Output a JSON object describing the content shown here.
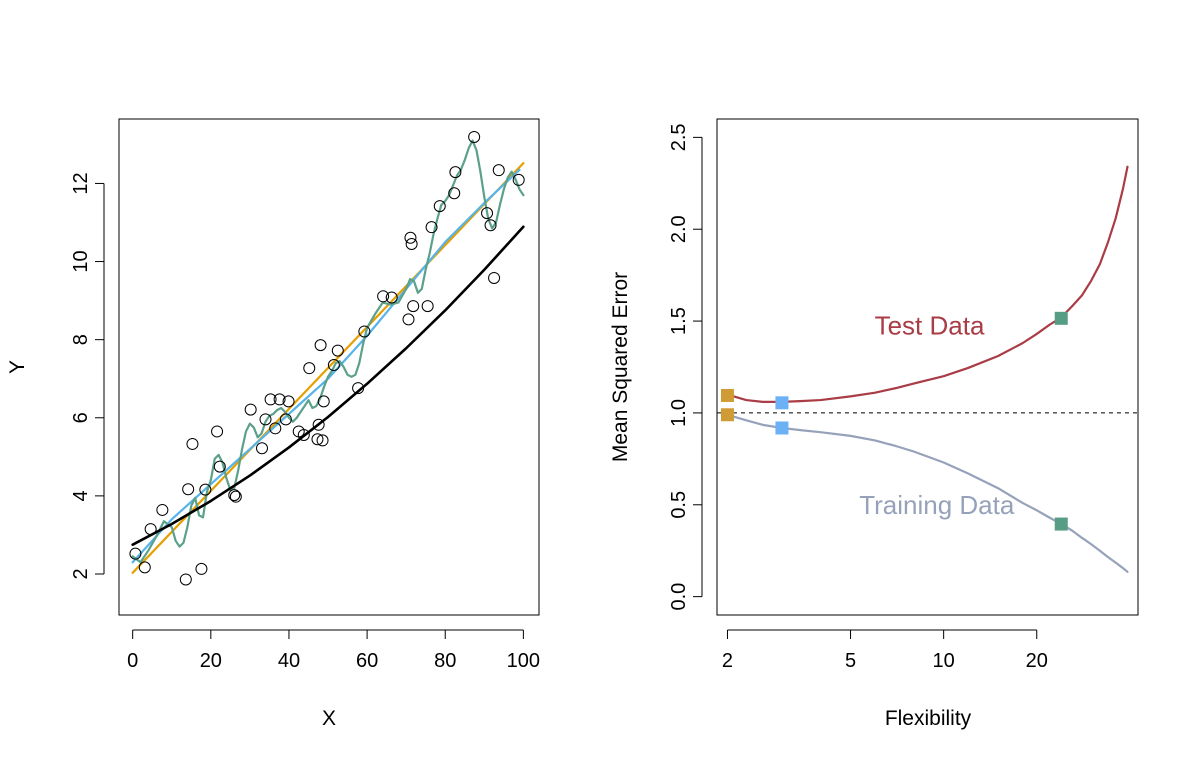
{
  "chart_data": [
    {
      "type": "scatter",
      "title": "",
      "xlabel": "X",
      "ylabel": "Y",
      "xlim": [
        -3.5,
        104
      ],
      "ylim": [
        0.95,
        13.65
      ],
      "xticks": [
        "0",
        "20",
        "40",
        "60",
        "80",
        "100"
      ],
      "xtick_values": [
        0,
        20,
        40,
        60,
        80,
        100
      ],
      "yticks": [
        "2",
        "4",
        "6",
        "8",
        "10",
        "12"
      ],
      "ytick_values": [
        2,
        4,
        6,
        8,
        10,
        12
      ],
      "grid": false,
      "points": [
        {
          "x": 0.7,
          "y": 2.52
        },
        {
          "x": 3.1,
          "y": 2.17
        },
        {
          "x": 4.6,
          "y": 3.15
        },
        {
          "x": 7.6,
          "y": 3.64
        },
        {
          "x": 13.6,
          "y": 1.86
        },
        {
          "x": 14.2,
          "y": 4.17
        },
        {
          "x": 15.3,
          "y": 5.33
        },
        {
          "x": 17.6,
          "y": 2.13
        },
        {
          "x": 18.6,
          "y": 4.16
        },
        {
          "x": 21.6,
          "y": 5.65
        },
        {
          "x": 22.3,
          "y": 4.75
        },
        {
          "x": 26.0,
          "y": 4.02
        },
        {
          "x": 26.4,
          "y": 3.98
        },
        {
          "x": 30.2,
          "y": 6.21
        },
        {
          "x": 33.1,
          "y": 5.22
        },
        {
          "x": 34.0,
          "y": 5.96
        },
        {
          "x": 35.3,
          "y": 6.47
        },
        {
          "x": 36.5,
          "y": 5.73
        },
        {
          "x": 37.6,
          "y": 6.47
        },
        {
          "x": 39.2,
          "y": 5.96
        },
        {
          "x": 39.9,
          "y": 6.42
        },
        {
          "x": 42.5,
          "y": 5.65
        },
        {
          "x": 43.8,
          "y": 5.56
        },
        {
          "x": 45.2,
          "y": 7.27
        },
        {
          "x": 47.3,
          "y": 5.45
        },
        {
          "x": 47.6,
          "y": 5.82
        },
        {
          "x": 48.1,
          "y": 7.86
        },
        {
          "x": 48.6,
          "y": 5.42
        },
        {
          "x": 48.9,
          "y": 6.42
        },
        {
          "x": 51.5,
          "y": 7.35
        },
        {
          "x": 52.5,
          "y": 7.72
        },
        {
          "x": 57.7,
          "y": 6.76
        },
        {
          "x": 59.3,
          "y": 8.21
        },
        {
          "x": 64.1,
          "y": 9.11
        },
        {
          "x": 66.3,
          "y": 9.08
        },
        {
          "x": 70.6,
          "y": 8.52
        },
        {
          "x": 71.1,
          "y": 10.61
        },
        {
          "x": 71.4,
          "y": 10.45
        },
        {
          "x": 71.8,
          "y": 8.86
        },
        {
          "x": 75.5,
          "y": 8.86
        },
        {
          "x": 76.5,
          "y": 10.88
        },
        {
          "x": 78.6,
          "y": 11.42
        },
        {
          "x": 82.3,
          "y": 11.75
        },
        {
          "x": 82.6,
          "y": 12.29
        },
        {
          "x": 87.4,
          "y": 13.19
        },
        {
          "x": 90.7,
          "y": 11.24
        },
        {
          "x": 91.6,
          "y": 10.93
        },
        {
          "x": 92.5,
          "y": 9.58
        },
        {
          "x": 93.7,
          "y": 12.34
        },
        {
          "x": 98.8,
          "y": 12.09
        }
      ],
      "series": [
        {
          "color": "#000000",
          "curve": "true",
          "x": [
            0,
            10,
            20,
            30,
            40,
            50,
            60,
            70,
            80,
            90,
            100
          ],
          "y": [
            2.75,
            3.28,
            3.87,
            4.52,
            5.24,
            6.02,
            6.87,
            7.78,
            8.75,
            9.79,
            10.89
          ]
        },
        {
          "color": "#e69f00",
          "curve": "linear",
          "x": [
            0,
            100
          ],
          "y": [
            2.03,
            12.52
          ]
        },
        {
          "color": "#56b4e9",
          "curve": "smooth",
          "x": [
            0,
            10,
            20,
            30,
            40,
            50,
            60,
            70,
            80,
            90,
            99
          ],
          "y": [
            2.3,
            3.4,
            4.3,
            5.2,
            6.1,
            7.0,
            8.1,
            9.3,
            10.5,
            11.5,
            12.35
          ]
        },
        {
          "color": "#5aa08a",
          "curve": "wiggly",
          "x": [
            0,
            2,
            4,
            6,
            8,
            10,
            11,
            12,
            13,
            14,
            15,
            16,
            17,
            18,
            19,
            20,
            21,
            22,
            23,
            24,
            25,
            26,
            27,
            28,
            29,
            30,
            31,
            32,
            33,
            34,
            35,
            36,
            37,
            38,
            39,
            40,
            41,
            42,
            43,
            44,
            45,
            46,
            47,
            48,
            49,
            50,
            51,
            52,
            53,
            54,
            55,
            56,
            57,
            58,
            59,
            60,
            62,
            64,
            66,
            68,
            70,
            71,
            72,
            73,
            74,
            75,
            76,
            77,
            78,
            79,
            80,
            81,
            82,
            83,
            84,
            85,
            86,
            87,
            88,
            89,
            90,
            91,
            92,
            93,
            94,
            95,
            96,
            97,
            98,
            99,
            100
          ],
          "y": [
            2.45,
            2.3,
            2.6,
            2.95,
            3.35,
            3.2,
            2.85,
            2.7,
            2.8,
            3.2,
            3.75,
            3.95,
            3.5,
            3.45,
            4.1,
            4.4,
            4.95,
            5.05,
            4.85,
            4.45,
            4.15,
            4.2,
            4.65,
            5.2,
            5.65,
            5.85,
            5.75,
            5.5,
            5.6,
            5.9,
            6.05,
            6.1,
            6.2,
            6.25,
            6.15,
            6.0,
            5.9,
            6.0,
            6.15,
            6.3,
            6.45,
            6.25,
            6.3,
            6.5,
            6.8,
            7.05,
            7.2,
            7.4,
            7.45,
            7.3,
            7.1,
            7.05,
            7.1,
            7.4,
            7.9,
            8.3,
            8.65,
            8.95,
            8.9,
            8.95,
            9.3,
            9.55,
            9.5,
            9.2,
            9.3,
            9.8,
            10.2,
            10.7,
            11.1,
            11.45,
            11.55,
            11.7,
            11.95,
            12.2,
            12.35,
            12.6,
            12.9,
            13.1,
            12.85,
            12.3,
            11.65,
            11.1,
            10.85,
            11.0,
            11.45,
            11.85,
            12.15,
            12.3,
            12.1,
            11.85,
            11.7
          ]
        }
      ]
    },
    {
      "type": "line",
      "title": "",
      "xlabel": "Flexibility",
      "ylabel": "Mean Squared Error",
      "xscale": "log",
      "xlim": [
        1.85,
        42.5
      ],
      "ylim": [
        -0.1,
        2.6
      ],
      "xticks": [
        "2",
        "5",
        "10",
        "20"
      ],
      "xtick_values": [
        2,
        5,
        10,
        20
      ],
      "yticks": [
        "0.0",
        "0.5",
        "1.0",
        "1.5",
        "2.0",
        "2.5"
      ],
      "ytick_values": [
        0,
        0.5,
        1.0,
        1.5,
        2.0,
        2.5
      ],
      "grid": false,
      "reference_line": {
        "y": 1.0,
        "style": "dashed",
        "color": "#000000"
      },
      "annotations": [
        {
          "text": "Test Data",
          "x": 9.0,
          "y": 1.475,
          "color": "#a93c45"
        },
        {
          "text": "Training Data",
          "x": 9.5,
          "y": 0.5,
          "color": "#96a1ba"
        }
      ],
      "series": [
        {
          "name": "Test Data",
          "color": "#a93c45",
          "x": [
            2,
            2.3,
            2.6,
            3,
            3.5,
            4,
            5,
            6,
            7,
            8,
            10,
            12,
            15,
            18,
            20,
            22,
            24,
            26,
            28,
            30,
            32,
            34,
            36,
            38,
            39.3
          ],
          "y": [
            1.1,
            1.07,
            1.06,
            1.06,
            1.065,
            1.07,
            1.09,
            1.11,
            1.135,
            1.16,
            1.2,
            1.245,
            1.31,
            1.38,
            1.43,
            1.48,
            1.52,
            1.58,
            1.64,
            1.72,
            1.81,
            1.93,
            2.06,
            2.22,
            2.34
          ]
        },
        {
          "name": "Training Data",
          "color": "#96a1ba",
          "x": [
            2,
            2.3,
            2.6,
            3,
            3.5,
            4,
            5,
            6,
            7,
            8,
            10,
            12,
            15,
            18,
            20,
            22,
            24,
            26,
            28,
            30,
            32,
            34,
            36,
            38,
            39.3
          ],
          "y": [
            0.99,
            0.96,
            0.935,
            0.918,
            0.905,
            0.895,
            0.875,
            0.85,
            0.82,
            0.79,
            0.73,
            0.67,
            0.59,
            0.51,
            0.47,
            0.43,
            0.395,
            0.36,
            0.32,
            0.285,
            0.25,
            0.215,
            0.185,
            0.155,
            0.135
          ]
        }
      ],
      "markers": [
        {
          "x": 2,
          "y": 1.095,
          "color": "#cf9b35"
        },
        {
          "x": 2,
          "y": 0.99,
          "color": "#cf9b35"
        },
        {
          "x": 3,
          "y": 1.055,
          "color": "#6cb1f6"
        },
        {
          "x": 3,
          "y": 0.918,
          "color": "#6cb1f6"
        },
        {
          "x": 24,
          "y": 1.515,
          "color": "#579d85"
        },
        {
          "x": 24,
          "y": 0.395,
          "color": "#579d85"
        }
      ]
    }
  ]
}
